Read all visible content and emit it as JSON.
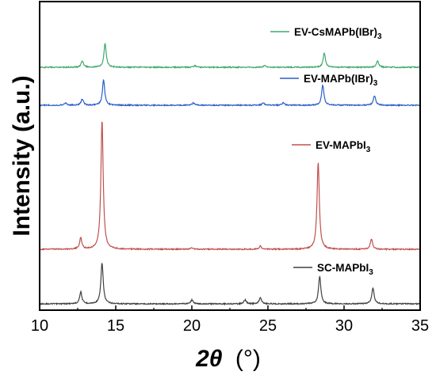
{
  "chart_data": {
    "type": "line",
    "xlabel_symbol": "2θ",
    "xlabel_unit": "(°)",
    "ylabel": "Intensity (a.u.)",
    "xlim": [
      10,
      35
    ],
    "x_ticks": [
      "10",
      "15",
      "20",
      "25",
      "30",
      "35"
    ],
    "y_ticks_labeled": false,
    "grid": false,
    "legend_placement": "inline-right-of-each-trace",
    "series": [
      {
        "name_main": "SC-MAPbI",
        "name_sub": "3",
        "color": "#404040",
        "peaks": [
          [
            12.7,
            15
          ],
          [
            14.1,
            52
          ],
          [
            20.0,
            5
          ],
          [
            23.5,
            5
          ],
          [
            24.5,
            8
          ],
          [
            28.4,
            35
          ],
          [
            31.9,
            20
          ]
        ]
      },
      {
        "name_main": "EV-MAPbI",
        "name_sub": "3",
        "color": "#c0504d",
        "peaks": [
          [
            12.7,
            14
          ],
          [
            14.1,
            163
          ],
          [
            20.0,
            2
          ],
          [
            24.5,
            4
          ],
          [
            28.3,
            110
          ],
          [
            31.8,
            13
          ]
        ]
      },
      {
        "name_main": "EV-MAPb(IBr)",
        "name_sub": "3",
        "color": "#2b5fc7",
        "peaks": [
          [
            11.7,
            3
          ],
          [
            12.8,
            8
          ],
          [
            14.2,
            32
          ],
          [
            20.1,
            3
          ],
          [
            24.7,
            3
          ],
          [
            26.0,
            3
          ],
          [
            28.6,
            26
          ],
          [
            32.0,
            12
          ]
        ]
      },
      {
        "name_main": "EV-CsMAPb(IBr)",
        "name_sub": "3",
        "color": "#3fa86b",
        "peaks": [
          [
            12.8,
            8
          ],
          [
            14.3,
            30
          ],
          [
            20.2,
            2
          ],
          [
            24.8,
            2
          ],
          [
            28.7,
            18
          ],
          [
            32.2,
            8
          ]
        ]
      }
    ]
  }
}
